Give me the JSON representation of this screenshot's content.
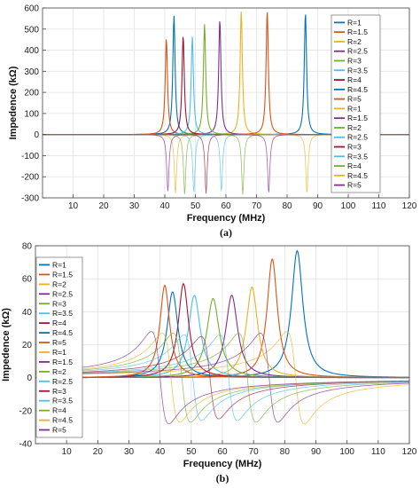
{
  "chart_data": [
    {
      "type": "line",
      "caption": "(a)",
      "xlabel": "Frequency (MHz)",
      "ylabel": "Impedence  (kΩ)",
      "xlim": [
        0,
        120
      ],
      "ylim": [
        -300,
        600
      ],
      "xticks": [
        10,
        20,
        30,
        40,
        50,
        60,
        70,
        80,
        90,
        100,
        110,
        120
      ],
      "yticks": [
        -300,
        -200,
        -100,
        0,
        100,
        200,
        300,
        400,
        500,
        600
      ],
      "grid": true,
      "legend_position": "top-right",
      "series": [
        {
          "name": "R=1",
          "color": "#0072bd",
          "f0": 43,
          "peak": 565
        },
        {
          "name": "R=1.5",
          "color": "#d95319",
          "f0": 40.5,
          "peak": 455
        },
        {
          "name": "R=2",
          "color": "#edb120",
          "f0": 65,
          "peak": 585
        },
        {
          "name": "R=2.5",
          "color": "#7e2f8e",
          "f0": 58,
          "peak": 545
        },
        {
          "name": "R=3",
          "color": "#77ac30",
          "f0": 53,
          "peak": 525
        },
        {
          "name": "R=3.5",
          "color": "#4dbeee",
          "f0": 49,
          "peak": 465
        },
        {
          "name": "R=4",
          "color": "#a2142f",
          "f0": 46,
          "peak": 470
        },
        {
          "name": "R=4.5",
          "color": "#0072bd",
          "f0": 86,
          "peak": 578
        },
        {
          "name": "R=5",
          "color": "#d95319",
          "f0": 73.5,
          "peak": 585
        },
        {
          "name": "R=1",
          "color": "#edb120",
          "f0": 43.5,
          "peak": -280
        },
        {
          "name": "R=1.5",
          "color": "#7e2f8e",
          "f0": 41,
          "peak": -270
        },
        {
          "name": "R=2",
          "color": "#77ac30",
          "f0": 46.5,
          "peak": -285
        },
        {
          "name": "R=2.5",
          "color": "#4dbeee",
          "f0": 49.5,
          "peak": -275
        },
        {
          "name": "R=3",
          "color": "#a2142f",
          "f0": 53.5,
          "peak": -280
        },
        {
          "name": "R=3.5",
          "color": "#4dbeee",
          "f0": 58.5,
          "peak": -270
        },
        {
          "name": "R=4",
          "color": "#77ac30",
          "f0": 65.5,
          "peak": -285
        },
        {
          "name": "R=4.5",
          "color": "#edb120",
          "f0": 86.5,
          "peak": -280
        },
        {
          "name": "R=5",
          "color": "#7e2f8e",
          "f0": 74,
          "peak": -278
        }
      ]
    },
    {
      "type": "line",
      "caption": "(b)",
      "xlabel": "Frequency (MHz)",
      "ylabel": "Impedence  (kΩ)",
      "xlim": [
        0,
        120
      ],
      "ylim": [
        -40,
        80
      ],
      "xticks": [
        10,
        20,
        30,
        40,
        50,
        60,
        70,
        80,
        90,
        100,
        110,
        120
      ],
      "yticks": [
        -40,
        -20,
        0,
        20,
        40,
        60,
        80
      ],
      "grid": true,
      "legend_position": "top-left",
      "series": [
        {
          "name": "R=1",
          "color": "#0072bd",
          "f0": 84,
          "peak": 77,
          "width": 2.2
        },
        {
          "name": "R=1.5",
          "color": "#d95319",
          "f0": 76,
          "peak": 72,
          "width": 2.0
        },
        {
          "name": "R=2",
          "color": "#edb120",
          "f0": 69.5,
          "peak": 55,
          "width": 2.2
        },
        {
          "name": "R=2.5",
          "color": "#7e2f8e",
          "f0": 63,
          "peak": 50,
          "width": 2.3
        },
        {
          "name": "R=3",
          "color": "#77ac30",
          "f0": 57,
          "peak": 48,
          "width": 2.4
        },
        {
          "name": "R=3.5",
          "color": "#4dbeee",
          "f0": 51,
          "peak": 50,
          "width": 2.3
        },
        {
          "name": "R=4",
          "color": "#a2142f",
          "f0": 47.5,
          "peak": 57,
          "width": 2.0
        },
        {
          "name": "R=4.5",
          "color": "#0072bd",
          "f0": 44,
          "peak": 52,
          "width": 2.1
        },
        {
          "name": "R=5",
          "color": "#d95319",
          "f0": 41.5,
          "peak": 56,
          "width": 1.9
        },
        {
          "name": "R=1",
          "color": "#edb120",
          "f0": 83.5,
          "peak": 28,
          "width": 2.8
        },
        {
          "name": "R=1.5",
          "color": "#7e2f8e",
          "f0": 75,
          "peak": 27,
          "width": 2.8
        },
        {
          "name": "R=2",
          "color": "#77ac30",
          "f0": 68,
          "peak": 27,
          "width": 2.8
        },
        {
          "name": "R=2.5",
          "color": "#4dbeee",
          "f0": 62,
          "peak": 26,
          "width": 2.8
        },
        {
          "name": "R=3",
          "color": "#a2142f",
          "f0": 56,
          "peak": 25,
          "width": 2.8
        },
        {
          "name": "R=3.5",
          "color": "#4dbeee",
          "f0": 50.5,
          "peak": 26,
          "width": 2.8
        },
        {
          "name": "R=4",
          "color": "#77ac30",
          "f0": 47,
          "peak": 27,
          "width": 2.8
        },
        {
          "name": "R=4.5",
          "color": "#edb120",
          "f0": 43.5,
          "peak": 27,
          "width": 2.8
        },
        {
          "name": "R=5",
          "color": "#7e2f8e",
          "f0": 40,
          "peak": 28,
          "width": 2.8
        }
      ]
    }
  ]
}
